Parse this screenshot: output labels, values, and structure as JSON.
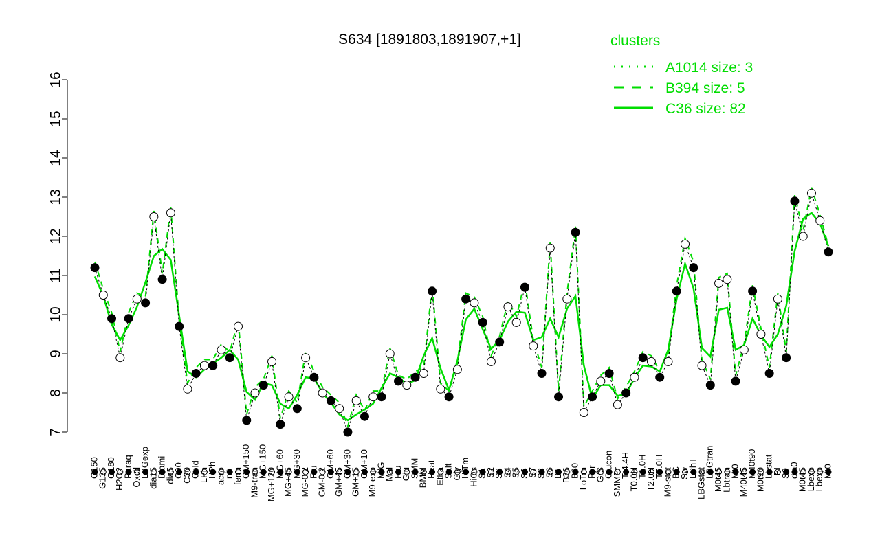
{
  "chart_data": {
    "type": "line",
    "title": "S634 [1891803,1891907,+1]",
    "xlabel": "",
    "ylabel": "",
    "ylim": [
      7,
      16
    ],
    "yticks": [
      7,
      8,
      9,
      10,
      11,
      12,
      13,
      14,
      15,
      16
    ],
    "legend": {
      "title": "clusters",
      "placement": "top-right",
      "entries": [
        {
          "label": "A1014 size: 3",
          "style": "dotted"
        },
        {
          "label": "B394 size: 5",
          "style": "dashed"
        },
        {
          "label": "C36 size: 82",
          "style": "solid"
        }
      ]
    },
    "colors": {
      "line": "#00dd00",
      "point_open": "#ffffff",
      "point_filled": "#000000"
    },
    "points": [
      [
        "G150",
        11.2,
        1
      ],
      [
        "G135",
        10.5,
        0
      ],
      [
        "G180",
        9.9,
        1
      ],
      [
        "H2O2",
        8.9,
        0
      ],
      [
        "Paraq",
        9.9,
        1
      ],
      [
        "Oxctl",
        10.4,
        0
      ],
      [
        "LBGexp",
        10.3,
        1
      ],
      [
        "dia15",
        12.5,
        0
      ],
      [
        "Diami",
        10.9,
        1
      ],
      [
        "dia5",
        12.6,
        0
      ],
      [
        "C90",
        9.7,
        1
      ],
      [
        "C30",
        8.1,
        0
      ],
      [
        "Cold",
        8.5,
        1
      ],
      [
        "LPh",
        8.7,
        0
      ],
      [
        "HPh",
        8.7,
        1
      ],
      [
        "aero",
        9.1,
        0
      ],
      [
        "nit",
        8.9,
        1
      ],
      [
        "ferm",
        9.7,
        0
      ],
      [
        "GM+150",
        7.3,
        1
      ],
      [
        "M9-tran",
        8.0,
        0
      ],
      [
        "MG+150",
        8.2,
        1
      ],
      [
        "MG+120",
        8.8,
        0
      ],
      [
        "MG+60",
        7.2,
        1
      ],
      [
        "MG+45",
        7.9,
        0
      ],
      [
        "MG+30",
        7.6,
        1
      ],
      [
        "MG-0.2",
        8.9,
        0
      ],
      [
        "Fru",
        8.4,
        1
      ],
      [
        "GM-0.2",
        8.0,
        0
      ],
      [
        "GM+60",
        7.8,
        1
      ],
      [
        "GM+45",
        7.6,
        0
      ],
      [
        "GM+30",
        7.0,
        1
      ],
      [
        "GM+15",
        7.8,
        0
      ],
      [
        "GM+10",
        7.4,
        1
      ],
      [
        "M9-exp",
        7.9,
        0
      ],
      [
        "M/G",
        7.9,
        1
      ],
      [
        "Mal",
        9.0,
        0
      ],
      [
        "Fru",
        8.3,
        1
      ],
      [
        "Glu",
        8.2,
        0
      ],
      [
        "SMM",
        8.4,
        1
      ],
      [
        "BMM",
        8.5,
        0
      ],
      [
        "Heat",
        10.6,
        1
      ],
      [
        "Etha",
        8.1,
        0
      ],
      [
        "Salt",
        7.9,
        1
      ],
      [
        "Gly",
        8.6,
        0
      ],
      [
        "HiTm",
        10.4,
        1
      ],
      [
        "HiOs",
        10.3,
        0
      ],
      [
        "S1",
        9.8,
        1
      ],
      [
        "S2",
        8.8,
        0
      ],
      [
        "S3",
        9.3,
        1
      ],
      [
        "S4",
        10.2,
        0
      ],
      [
        "S5",
        9.8,
        0
      ],
      [
        "S6",
        10.7,
        1
      ],
      [
        "S7",
        9.2,
        0
      ],
      [
        "S8",
        8.5,
        1
      ],
      [
        "S6",
        11.7,
        0
      ],
      [
        "BT",
        7.9,
        1
      ],
      [
        "B36",
        10.4,
        0
      ],
      [
        "B60",
        12.1,
        1
      ],
      [
        "LoTm",
        7.5,
        0
      ],
      [
        "Pyr",
        7.9,
        1
      ],
      [
        "G/S",
        8.3,
        0
      ],
      [
        "Glucon",
        8.5,
        1
      ],
      [
        "SMMPr",
        7.7,
        0
      ],
      [
        "T-4.4H",
        8.0,
        1
      ],
      [
        "T0.0H",
        8.4,
        0
      ],
      [
        "T1.0H",
        8.9,
        1
      ],
      [
        "T2.0H",
        8.8,
        0
      ],
      [
        "T5.0H",
        8.4,
        1
      ],
      [
        "M9-stat",
        8.8,
        0
      ],
      [
        "BC",
        10.6,
        1
      ],
      [
        "Sw",
        11.8,
        0
      ],
      [
        "LPhT",
        11.2,
        1
      ],
      [
        "LBGstat",
        8.7,
        0
      ],
      [
        "LBGtran",
        8.2,
        1
      ],
      [
        "M0t45",
        10.8,
        0
      ],
      [
        "Lbtran",
        10.9,
        0
      ],
      [
        "Mt0",
        8.3,
        1
      ],
      [
        "M40t45",
        9.1,
        0
      ],
      [
        "M40t90",
        10.6,
        1
      ],
      [
        "M0t90",
        9.5,
        0
      ],
      [
        "Lbstat",
        8.5,
        1
      ],
      [
        "BI",
        10.4,
        0
      ],
      [
        "S0",
        8.9,
        1
      ],
      [
        "dia0",
        12.9,
        1
      ],
      [
        "M0t45",
        12.0,
        0
      ],
      [
        "Lbexp",
        13.1,
        0
      ],
      [
        "Lbexp",
        12.4,
        0
      ],
      [
        "Mt0",
        11.6,
        1
      ]
    ]
  }
}
